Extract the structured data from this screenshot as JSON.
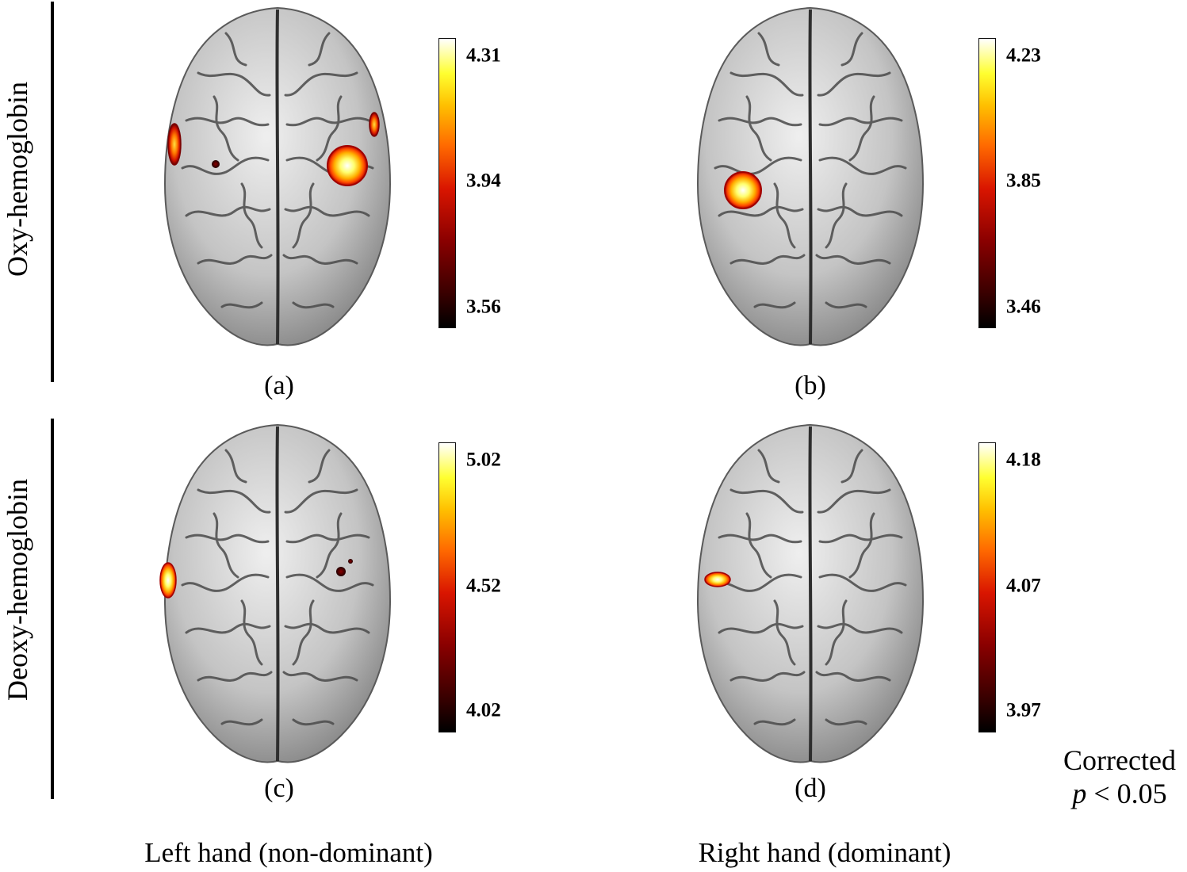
{
  "row_labels": {
    "top": "Oxy-hemoglobin",
    "bottom": "Deoxy-hemoglobin"
  },
  "column_labels": {
    "left": "Left hand (non-dominant)",
    "right": "Right hand (dominant)"
  },
  "panels": {
    "a": {
      "caption": "(a)",
      "colorbar": {
        "max": "4.31",
        "mid": "3.94",
        "min": "3.56"
      }
    },
    "b": {
      "caption": "(b)",
      "colorbar": {
        "max": "4.23",
        "mid": "3.85",
        "min": "3.46"
      }
    },
    "c": {
      "caption": "(c)",
      "colorbar": {
        "max": "5.02",
        "mid": "4.52",
        "min": "4.02"
      }
    },
    "d": {
      "caption": "(d)",
      "colorbar": {
        "max": "4.18",
        "mid": "4.07",
        "min": "3.97"
      }
    }
  },
  "threshold": {
    "line1": "Corrected",
    "p_symbol": "p",
    "line2_rest": " < 0.05"
  },
  "colors": {
    "brain_light": "#e6e6e6",
    "brain_dark": "#6a6a6a",
    "sulcus": "#3c3c3c",
    "colormap": [
      "#000000",
      "#8a0000",
      "#d91500",
      "#ff6a00",
      "#ffc000",
      "#ffff30",
      "#ffffff"
    ]
  }
}
